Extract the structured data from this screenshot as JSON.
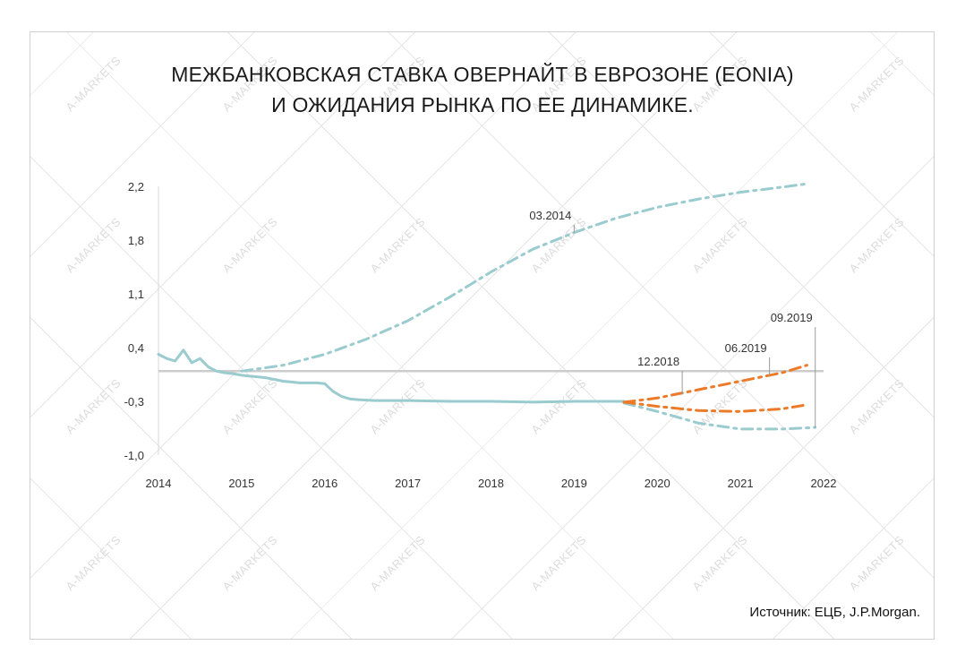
{
  "watermark": "A-MARKETS",
  "title_line1": "МЕЖБАНКОВСКАЯ СТАВКА ОВЕРНАЙТ В ЕВРОЗОНЕ (EONIA)",
  "title_line2": "И ОЖИДАНИЯ РЫНКА ПО ЕЕ ДИНАМИКЕ.",
  "source": "Источник: ЕЦБ, J.P.Morgan.",
  "colors": {
    "actual": "#99cbcf",
    "orange": "#ec7a28",
    "zero": "#cccccc",
    "axis": "#d9d9d9",
    "label": "#333333"
  },
  "chart_data": {
    "type": "line",
    "xlim": [
      2014,
      2022
    ],
    "ylim": [
      -1.0,
      2.2
    ],
    "x_ticks": [
      "2014",
      "2015",
      "2016",
      "2017",
      "2018",
      "2019",
      "2020",
      "2021",
      "2022"
    ],
    "y_ticks": [
      "2,2",
      "1,8",
      "1,1",
      "0,4",
      "-0,3",
      "-1,0"
    ],
    "series": [
      {
        "style": "solid",
        "color": "#99cbcf",
        "x": [
          2014.0,
          2014.1,
          2014.2,
          2014.3,
          2014.4,
          2014.5,
          2014.6,
          2014.7,
          2014.8,
          2014.9,
          2015.0,
          2015.1,
          2015.2,
          2015.3,
          2015.4,
          2015.5,
          2015.6,
          2015.7,
          2015.8,
          2015.9,
          2016.0,
          2016.1,
          2016.2,
          2016.3,
          2016.4,
          2016.6,
          2016.8,
          2017.0,
          2017.5,
          2018.0,
          2018.5,
          2019.0,
          2019.5,
          2019.6
        ],
        "y": [
          0.2,
          0.15,
          0.12,
          0.25,
          0.1,
          0.15,
          0.05,
          0.0,
          -0.02,
          -0.03,
          -0.05,
          -0.06,
          -0.07,
          -0.08,
          -0.1,
          -0.12,
          -0.13,
          -0.14,
          -0.14,
          -0.14,
          -0.15,
          -0.24,
          -0.3,
          -0.33,
          -0.34,
          -0.35,
          -0.35,
          -0.35,
          -0.36,
          -0.36,
          -0.37,
          -0.36,
          -0.36,
          -0.36
        ]
      },
      {
        "name": "03.2014",
        "style": "dashdot",
        "color": "#99cbcf",
        "x": [
          2015.0,
          2015.5,
          2016.0,
          2016.5,
          2017.0,
          2017.5,
          2018.0,
          2018.5,
          2019.0,
          2019.5,
          2020.0,
          2020.5,
          2021.0,
          2021.5,
          2021.8
        ],
        "y": [
          0.0,
          0.07,
          0.2,
          0.38,
          0.6,
          0.88,
          1.18,
          1.45,
          1.65,
          1.82,
          1.95,
          2.05,
          2.13,
          2.19,
          2.23
        ]
      },
      {
        "name": "09.2019",
        "style": "dashdot",
        "color": "#99cbcf",
        "x": [
          2019.6,
          2020.0,
          2020.5,
          2021.0,
          2021.5,
          2021.9
        ],
        "y": [
          -0.38,
          -0.48,
          -0.62,
          -0.69,
          -0.69,
          -0.67
        ]
      },
      {
        "name": "12.2018",
        "style": "dashdot",
        "color": "#ec7a28",
        "x": [
          2019.6,
          2020.0,
          2020.5,
          2021.0,
          2021.5,
          2021.8
        ],
        "y": [
          -0.37,
          -0.32,
          -0.22,
          -0.12,
          -0.02,
          0.07
        ]
      },
      {
        "name": "06.2019",
        "style": "dashdot",
        "color": "#ec7a28",
        "x": [
          2019.6,
          2020.0,
          2020.5,
          2021.0,
          2021.5,
          2021.8
        ],
        "y": [
          -0.37,
          -0.42,
          -0.47,
          -0.48,
          -0.45,
          -0.4
        ]
      }
    ],
    "annotations": [
      {
        "label": "03.2014",
        "x": 2019.0,
        "y": 1.65
      },
      {
        "label": "12.2018",
        "x": 2020.3,
        "y": -0.28
      },
      {
        "label": "06.2019",
        "x": 2021.35,
        "y": -0.05
      },
      {
        "label": "09.2019",
        "x": 2021.9,
        "y": -0.67
      }
    ]
  }
}
